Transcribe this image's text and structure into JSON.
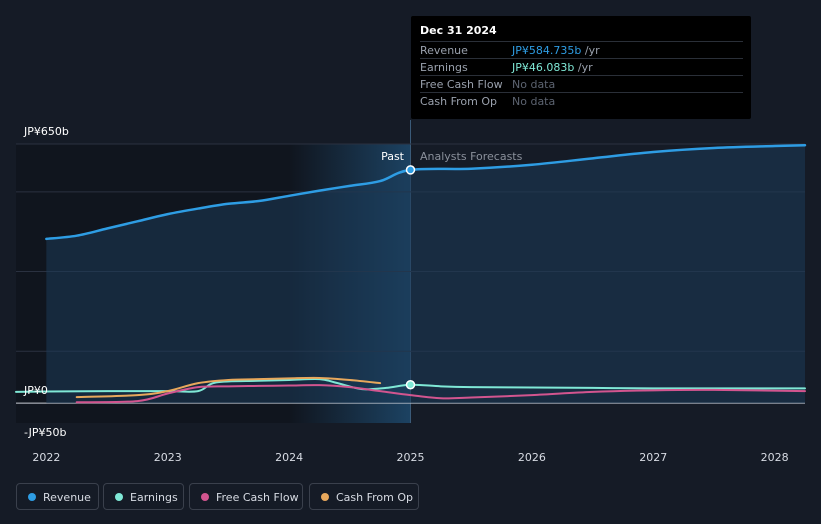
{
  "tooltip": {
    "date": "Dec 31 2024",
    "rows": [
      {
        "label": "Revenue",
        "value": "JP¥584.735b",
        "unit": "/yr",
        "color": "#2e9de4"
      },
      {
        "label": "Earnings",
        "value": "JP¥46.083b",
        "unit": "/yr",
        "color": "#7fe8d6"
      },
      {
        "label": "Free Cash Flow",
        "value": "No data",
        "unit": "",
        "color": "#5c6370"
      },
      {
        "label": "Cash From Op",
        "value": "No data",
        "unit": "",
        "color": "#5c6370"
      }
    ]
  },
  "regions": {
    "past": "Past",
    "forecast": "Analysts Forecasts"
  },
  "legend": [
    {
      "label": "Revenue",
      "color": "#2e9de4"
    },
    {
      "label": "Earnings",
      "color": "#7fe8d6"
    },
    {
      "label": "Free Cash Flow",
      "color": "#d2558f"
    },
    {
      "label": "Cash From Op",
      "color": "#e8a85c"
    }
  ],
  "chart_data": {
    "type": "line",
    "y_tick_labels": [
      "JP¥650b",
      "JP¥0",
      "-JP¥50b"
    ],
    "ylim": [
      -50,
      650
    ],
    "x_tick_labels": [
      "2022",
      "2023",
      "2024",
      "2025",
      "2026",
      "2027",
      "2028"
    ],
    "xlim": [
      2021.75,
      2028.25
    ],
    "divider_x": 2025.0,
    "series": [
      {
        "name": "Revenue",
        "color": "#2e9de4",
        "points": [
          [
            2022.0,
            412
          ],
          [
            2022.25,
            420
          ],
          [
            2022.5,
            438
          ],
          [
            2022.75,
            456
          ],
          [
            2023.0,
            474
          ],
          [
            2023.25,
            488
          ],
          [
            2023.5,
            500
          ],
          [
            2023.75,
            507
          ],
          [
            2024.0,
            520
          ],
          [
            2024.25,
            533
          ],
          [
            2024.5,
            545
          ],
          [
            2024.75,
            557
          ],
          [
            2025.0,
            585
          ],
          [
            2025.5,
            588
          ],
          [
            2026.0,
            598
          ],
          [
            2026.5,
            614
          ],
          [
            2027.0,
            630
          ],
          [
            2027.5,
            640
          ],
          [
            2028.0,
            645
          ],
          [
            2028.25,
            647
          ]
        ]
      },
      {
        "name": "Earnings",
        "color": "#7fe8d6",
        "points": [
          [
            2021.75,
            28
          ],
          [
            2022.0,
            29
          ],
          [
            2022.5,
            30
          ],
          [
            2023.0,
            30
          ],
          [
            2023.25,
            30
          ],
          [
            2023.4,
            52
          ],
          [
            2023.75,
            56
          ],
          [
            2024.0,
            58
          ],
          [
            2024.25,
            60
          ],
          [
            2024.4,
            50
          ],
          [
            2024.6,
            35
          ],
          [
            2024.8,
            38
          ],
          [
            2025.0,
            46
          ],
          [
            2025.25,
            42
          ],
          [
            2025.5,
            40
          ],
          [
            2026.0,
            39
          ],
          [
            2026.5,
            38
          ],
          [
            2027.0,
            37
          ],
          [
            2027.5,
            37
          ],
          [
            2028.25,
            37
          ]
        ]
      },
      {
        "name": "Free Cash Flow",
        "color": "#d2558f",
        "points": [
          [
            2022.25,
            2
          ],
          [
            2022.75,
            5
          ],
          [
            2023.0,
            24
          ],
          [
            2023.25,
            40
          ],
          [
            2023.5,
            42
          ],
          [
            2023.75,
            43
          ],
          [
            2024.0,
            44
          ],
          [
            2024.25,
            45
          ],
          [
            2024.5,
            40
          ],
          [
            2024.75,
            30
          ],
          [
            2025.0,
            20
          ],
          [
            2025.25,
            12
          ],
          [
            2025.5,
            14
          ],
          [
            2026.0,
            20
          ],
          [
            2026.5,
            28
          ],
          [
            2027.0,
            32
          ],
          [
            2027.5,
            33
          ],
          [
            2028.25,
            30
          ]
        ]
      },
      {
        "name": "Cash From Op",
        "color": "#e8a85c",
        "points": [
          [
            2022.25,
            15
          ],
          [
            2022.75,
            20
          ],
          [
            2023.0,
            30
          ],
          [
            2023.25,
            50
          ],
          [
            2023.5,
            58
          ],
          [
            2023.75,
            60
          ],
          [
            2024.0,
            62
          ],
          [
            2024.25,
            63
          ],
          [
            2024.5,
            58
          ],
          [
            2024.75,
            50
          ]
        ]
      }
    ]
  }
}
